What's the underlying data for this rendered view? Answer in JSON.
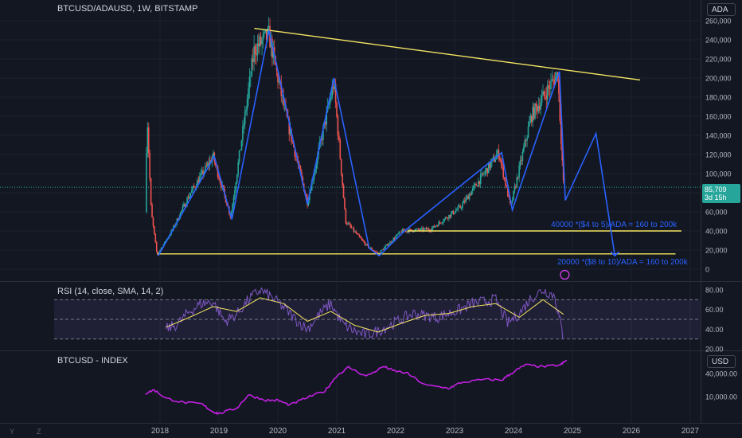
{
  "header": {
    "symbol_line": "BTCUSD/ADAUSD, 1W, BITSTAMP",
    "unit_badge": "ADA"
  },
  "price_tag": {
    "value": "85,709",
    "countdown": "3d 15h"
  },
  "annotations": {
    "upper_zone": "40000 *($4 to 5)/ADA = 160 to 200k",
    "lower_zone": "20000 *($8 to 10)/ADA = 160 to 200k"
  },
  "rsi_pane": {
    "label": "RSI (14, close, SMA, 14, 2)"
  },
  "index_pane": {
    "label": "BTCUSD - INDEX",
    "unit_badge": "USD"
  },
  "corner_letters": {
    "y": "Y",
    "z": "Z"
  },
  "colors": {
    "background": "#131722",
    "up": "#26a69a",
    "down": "#ef5350",
    "trendline": "#f5e663",
    "zigzag": "#2962ff",
    "rsi_line": "#7e57c2",
    "rsi_ma": "#f5e663",
    "index_line": "#c020e0"
  },
  "chart_data": [
    {
      "type": "candlestick",
      "title": "BTCUSD/ADAUSD, 1W, BITSTAMP",
      "x_ticks": [
        "2018",
        "2019",
        "2020",
        "2021",
        "2022",
        "2023",
        "2024",
        "2025",
        "2026",
        "2027"
      ],
      "y_ticks": [
        "260,000",
        "240,000",
        "220,000",
        "200,000",
        "180,000",
        "160,000",
        "140,000",
        "120,000",
        "100,000",
        "80,000",
        "60,000",
        "40,000",
        "20,000",
        "0"
      ],
      "ylim": [
        0,
        260000
      ],
      "last_value": 85709,
      "approx_close_path": [
        {
          "t": 2017.75,
          "v": 60000
        },
        {
          "t": 2017.78,
          "v": 165000
        },
        {
          "t": 2017.85,
          "v": 60000
        },
        {
          "t": 2017.95,
          "v": 15000
        },
        {
          "t": 2018.2,
          "v": 40000
        },
        {
          "t": 2018.5,
          "v": 78000
        },
        {
          "t": 2018.9,
          "v": 118000
        },
        {
          "t": 2019.2,
          "v": 55000
        },
        {
          "t": 2019.6,
          "v": 230000
        },
        {
          "t": 2019.85,
          "v": 245000
        },
        {
          "t": 2020.1,
          "v": 170000
        },
        {
          "t": 2020.5,
          "v": 70000
        },
        {
          "t": 2020.95,
          "v": 195000
        },
        {
          "t": 2021.15,
          "v": 50000
        },
        {
          "t": 2021.5,
          "v": 25000
        },
        {
          "t": 2021.7,
          "v": 16000
        },
        {
          "t": 2022.1,
          "v": 40000
        },
        {
          "t": 2022.6,
          "v": 42000
        },
        {
          "t": 2023.1,
          "v": 65000
        },
        {
          "t": 2023.75,
          "v": 122000
        },
        {
          "t": 2023.95,
          "v": 65000
        },
        {
          "t": 2024.3,
          "v": 160000
        },
        {
          "t": 2024.75,
          "v": 205000
        },
        {
          "t": 2024.85,
          "v": 85709
        }
      ],
      "trendlines": [
        {
          "from": {
            "t": 2019.6,
            "v": 252000
          },
          "to": {
            "t": 2026.15,
            "v": 198000
          }
        },
        {
          "from": {
            "t": 2017.95,
            "v": 16000
          },
          "to": {
            "t": 2026.75,
            "v": 16000
          }
        },
        {
          "from": {
            "t": 2022.2,
            "v": 40000
          },
          "to": {
            "t": 2026.85,
            "v": 40000
          }
        }
      ],
      "zigzag": [
        {
          "t": 2017.97,
          "v": 14000
        },
        {
          "t": 2018.92,
          "v": 118000
        },
        {
          "t": 2019.22,
          "v": 52000
        },
        {
          "t": 2019.85,
          "v": 250000
        },
        {
          "t": 2020.5,
          "v": 68000
        },
        {
          "t": 2020.95,
          "v": 200000
        },
        {
          "t": 2021.55,
          "v": 22000
        },
        {
          "t": 2021.72,
          "v": 14000
        },
        {
          "t": 2022.15,
          "v": 40000
        },
        {
          "t": 2023.8,
          "v": 122000
        },
        {
          "t": 2023.98,
          "v": 62000
        },
        {
          "t": 2024.78,
          "v": 207000
        },
        {
          "t": 2024.88,
          "v": 72000
        },
        {
          "t": 2025.4,
          "v": 142000
        },
        {
          "t": 2025.72,
          "v": 14000
        }
      ]
    },
    {
      "type": "line",
      "title": "RSI (14, close, SMA, 14, 2)",
      "y_ticks": [
        "80.00",
        "60.00",
        "40.00",
        "20.00"
      ],
      "ylim": [
        20,
        85
      ],
      "bands": {
        "upper": 70,
        "middle": 50,
        "lower": 30
      },
      "series": [
        {
          "x": [
            2018.1,
            2018.3,
            2018.5,
            2018.7,
            2018.9,
            2019.1,
            2019.3,
            2019.5,
            2019.7,
            2019.9,
            2020.1,
            2020.3,
            2020.5,
            2020.7,
            2020.9,
            2021.1,
            2021.3,
            2021.5,
            2021.7,
            2021.9,
            2022.1,
            2022.3,
            2022.5,
            2022.7,
            2022.9,
            2023.1,
            2023.3,
            2023.5,
            2023.7,
            2023.9,
            2024.1,
            2024.3,
            2024.5,
            2024.7,
            2024.85
          ],
          "values": [
            40,
            45,
            58,
            66,
            68,
            48,
            55,
            70,
            80,
            72,
            62,
            50,
            40,
            55,
            66,
            45,
            38,
            34,
            38,
            44,
            50,
            56,
            54,
            52,
            56,
            60,
            66,
            68,
            70,
            46,
            56,
            72,
            80,
            74,
            30
          ]
        },
        {
          "x": [
            2018.1,
            2018.5,
            2018.9,
            2019.3,
            2019.7,
            2020.1,
            2020.5,
            2020.9,
            2021.3,
            2021.7,
            2022.1,
            2022.5,
            2022.9,
            2023.3,
            2023.7,
            2024.1,
            2024.5,
            2024.85
          ],
          "values": [
            42,
            52,
            63,
            58,
            72,
            66,
            48,
            58,
            44,
            37,
            46,
            54,
            56,
            63,
            66,
            52,
            70,
            55
          ]
        }
      ]
    },
    {
      "type": "line",
      "title": "BTCUSD - INDEX",
      "y_ticks": [
        "40,000.00",
        "10,000.00"
      ],
      "scale": "log",
      "ylim": [
        3000,
        100000
      ],
      "series": [
        {
          "x": [
            2017.75,
            2017.9,
            2018.1,
            2018.4,
            2018.7,
            2018.9,
            2019.0,
            2019.3,
            2019.5,
            2019.8,
            2020.0,
            2020.2,
            2020.5,
            2020.8,
            2021.0,
            2021.2,
            2021.5,
            2021.8,
            2021.95,
            2022.2,
            2022.5,
            2022.9,
            2023.1,
            2023.5,
            2023.8,
            2024.0,
            2024.2,
            2024.5,
            2024.8,
            2024.9
          ],
          "values": [
            12000,
            15000,
            9000,
            7000,
            6500,
            4000,
            3600,
            5000,
            11000,
            8000,
            8000,
            6000,
            9500,
            14000,
            35000,
            58000,
            34000,
            61000,
            48000,
            40000,
            20000,
            16500,
            23000,
            28000,
            27000,
            44000,
            67000,
            60000,
            67000,
            90000
          ]
        }
      ]
    }
  ]
}
